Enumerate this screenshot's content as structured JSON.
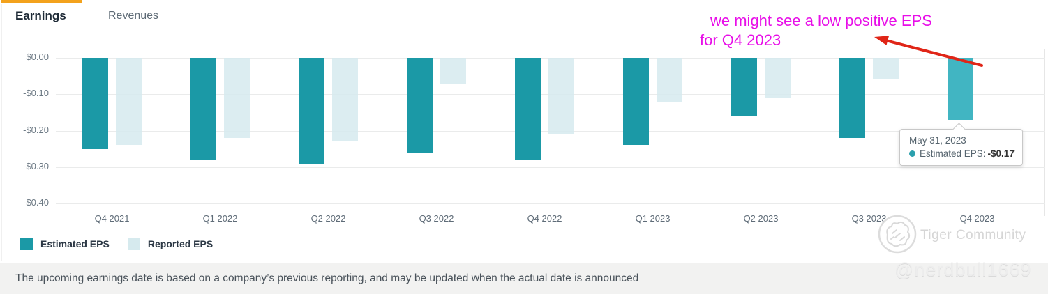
{
  "tabs": [
    {
      "label": "Earnings",
      "active": true
    },
    {
      "label": "Revenues",
      "active": false
    }
  ],
  "chart_data": {
    "type": "bar",
    "categories": [
      "Q4 2021",
      "Q1 2022",
      "Q2 2022",
      "Q3 2022",
      "Q4 2022",
      "Q1 2023",
      "Q2 2023",
      "Q3 2023",
      "Q4 2023"
    ],
    "series": [
      {
        "name": "Estimated EPS",
        "color": "#1b99a6",
        "values": [
          -0.25,
          -0.28,
          -0.29,
          -0.26,
          -0.28,
          -0.24,
          -0.16,
          -0.22,
          -0.17
        ]
      },
      {
        "name": "Reported EPS",
        "color": "#d6eaee",
        "values": [
          -0.24,
          -0.22,
          -0.23,
          -0.07,
          -0.21,
          -0.12,
          -0.11,
          -0.06,
          null
        ]
      }
    ],
    "highlight": {
      "category": "Q4 2023",
      "series": "Estimated EPS",
      "color": "#41b5c2"
    },
    "y_ticks": [
      {
        "label": "$0.00",
        "value": 0
      },
      {
        "label": "-$0.10",
        "value": -0.1
      },
      {
        "label": "-$0.20",
        "value": -0.2
      },
      {
        "label": "-$0.30",
        "value": -0.3
      },
      {
        "label": "-$0.40",
        "value": -0.4
      }
    ],
    "ylim": [
      -0.4,
      0
    ],
    "xlabel": "",
    "ylabel": "",
    "grid": true,
    "legend_position": "bottom-left",
    "currency": "USD"
  },
  "tooltip": {
    "date": "May 31, 2023",
    "series_label": "Estimated EPS:",
    "value": "-$0.17",
    "dot_color": "#2ba0ad"
  },
  "annotation": {
    "line1": "we might see a low positive EPS",
    "line2": "for Q4 2023",
    "color": "#e80ee8",
    "arrow_color": "#e02517"
  },
  "legend": [
    {
      "label": "Estimated EPS",
      "color": "#1b99a6"
    },
    {
      "label": "Reported EPS",
      "color": "#d6eaee"
    }
  ],
  "watermark": {
    "brand": "Tiger Community",
    "handle": "@nerdbull1669"
  },
  "footer": {
    "text": "The upcoming earnings date is based on a company’s previous reporting, and may be updated when the actual date is announced"
  }
}
